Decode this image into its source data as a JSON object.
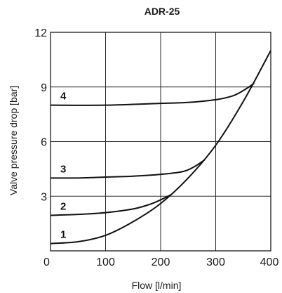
{
  "chart_data": {
    "type": "line",
    "title": "ADR-25",
    "xlabel": "Flow [l/min]",
    "ylabel": "Valve pressure drop [bar]",
    "xlim": [
      0,
      400
    ],
    "ylim": [
      0,
      12
    ],
    "x_ticks": [
      "0",
      "100",
      "200",
      "300",
      "400"
    ],
    "y_ticks": [
      "3",
      "6",
      "9",
      "12"
    ],
    "grid": true,
    "series": [
      {
        "name": "1",
        "x": [
          0,
          50,
          100,
          150,
          200,
          250,
          300,
          350,
          400
        ],
        "y": [
          0.4,
          0.5,
          0.85,
          1.6,
          2.6,
          4.0,
          5.8,
          8.2,
          11.0
        ]
      },
      {
        "name": "2",
        "x": [
          0,
          50,
          100,
          150,
          180,
          200,
          220
        ],
        "y": [
          1.95,
          2.0,
          2.1,
          2.3,
          2.55,
          2.8,
          3.1
        ]
      },
      {
        "name": "3",
        "x": [
          0,
          50,
          100,
          150,
          200,
          240,
          260,
          280
        ],
        "y": [
          4.0,
          4.0,
          4.05,
          4.1,
          4.2,
          4.35,
          4.6,
          5.0
        ]
      },
      {
        "name": "4",
        "x": [
          0,
          100,
          200,
          250,
          300,
          330,
          350,
          370
        ],
        "y": [
          8.0,
          8.0,
          8.1,
          8.15,
          8.3,
          8.5,
          8.8,
          9.2
        ]
      }
    ]
  }
}
